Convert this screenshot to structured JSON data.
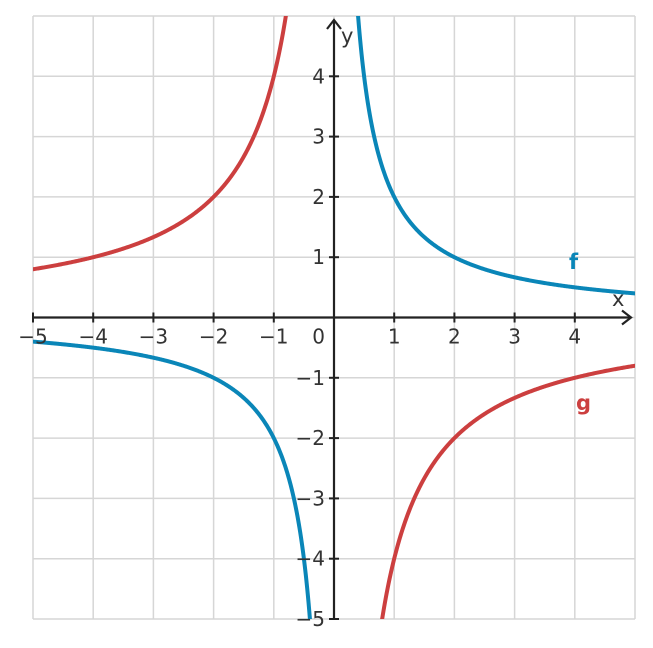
{
  "chart_data": {
    "type": "line",
    "xlabel": "x",
    "ylabel": "y",
    "xlim": [
      -5,
      5
    ],
    "ylim": [
      -5,
      5
    ],
    "grid": true,
    "x_ticks": [
      -5,
      -4,
      -3,
      -2,
      -1,
      1,
      2,
      3,
      4
    ],
    "y_ticks": [
      -5,
      -4,
      -3,
      -2,
      -1,
      1,
      2,
      3,
      4
    ],
    "x_tick_labels": [
      "−5",
      "−4",
      "−3",
      "−2",
      "−1",
      "1",
      "2",
      "3",
      "4"
    ],
    "y_tick_labels": [
      "−5",
      "−4",
      "−3",
      "−2",
      "−1",
      "1",
      "2",
      "3",
      "4"
    ],
    "origin_label": "0",
    "series": [
      {
        "name": "f",
        "color": "#0a86b8",
        "x": [
          -5,
          -4,
          -3,
          -2,
          -1,
          -0.6,
          -0.4,
          0.4,
          0.6,
          1,
          2,
          3,
          4,
          5
        ],
        "y": [
          -0.4,
          -0.5,
          -0.667,
          -1,
          -2,
          -3.333,
          -5,
          5,
          3.333,
          2,
          1,
          0.667,
          0.5,
          0.4
        ]
      },
      {
        "name": "g",
        "color": "#cc3f3f",
        "x": [
          -5,
          -4,
          -3,
          -2,
          -1,
          -0.6,
          -0.4,
          0.8,
          1,
          2,
          3,
          4,
          5
        ],
        "y": [
          0.8,
          1,
          1.333,
          2,
          4,
          6.667,
          10,
          -5,
          -4,
          -2,
          -1.333,
          -1,
          -0.8
        ]
      }
    ]
  }
}
